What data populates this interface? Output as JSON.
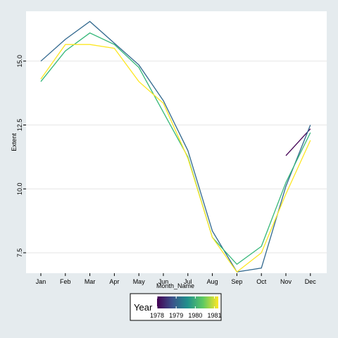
{
  "chart_data": {
    "type": "line",
    "xlabel": "Month_Name",
    "ylabel": "Extent",
    "categories": [
      "Jan",
      "Feb",
      "Mar",
      "Apr",
      "May",
      "Jun",
      "Jul",
      "Aug",
      "Sep",
      "Oct",
      "Nov",
      "Dec"
    ],
    "y_ticks": [
      "7.5",
      "10.0",
      "12.5",
      "15.0"
    ],
    "y_tick_values": [
      7.5,
      10.0,
      12.5,
      15.0
    ],
    "ylim": [
      6.7,
      16.95
    ],
    "grid": true,
    "legend": {
      "title": "Year",
      "type": "colorbar",
      "ticks": [
        "1978",
        "1979",
        "1980",
        "1981"
      ],
      "range": [
        1978,
        1981.2
      ],
      "placement": "bottom",
      "colors": [
        "#440154",
        "#3b528b",
        "#21918c",
        "#5ec962",
        "#fde725"
      ]
    },
    "series": [
      {
        "year": 1978,
        "color": "#440154",
        "values": [
          null,
          null,
          null,
          null,
          null,
          null,
          null,
          null,
          null,
          null,
          11.3,
          12.35
        ]
      },
      {
        "year": 1979,
        "color": "#31688e",
        "values": [
          15.0,
          15.85,
          16.55,
          15.7,
          14.85,
          13.45,
          11.5,
          8.35,
          6.75,
          6.9,
          10.1,
          12.5
        ]
      },
      {
        "year": 1980,
        "color": "#35b779",
        "values": [
          14.2,
          15.4,
          16.1,
          15.65,
          14.75,
          13.0,
          11.25,
          8.1,
          7.05,
          7.75,
          10.25,
          12.2
        ]
      },
      {
        "year": 1981,
        "color": "#fde725",
        "values": [
          14.3,
          15.65,
          15.65,
          15.5,
          14.2,
          13.35,
          11.2,
          8.1,
          6.75,
          7.5,
          9.8,
          11.9
        ]
      }
    ]
  }
}
